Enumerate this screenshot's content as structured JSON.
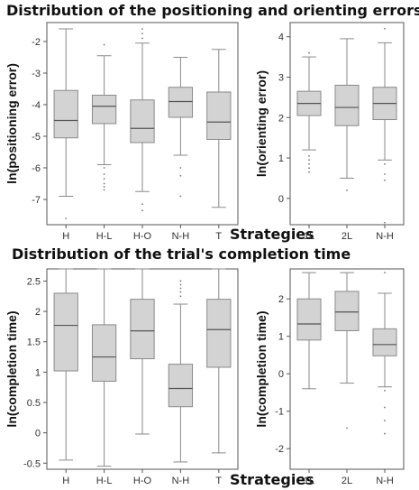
{
  "titles": {
    "top": "Distribution of the positioning and orienting errors",
    "bottom": "Distribution of the trial's completion time"
  },
  "strategies_label": "Strategies",
  "colors": {
    "box_fill": "#d3d3d3",
    "box_stroke": "#8a8a8a",
    "axis": "#555555",
    "text": "#333333"
  },
  "chart_data": [
    {
      "type": "boxplot",
      "title": "",
      "ylabel": "ln(positioning error)",
      "xlabel": "",
      "ylim": [
        -7.8,
        -1.4
      ],
      "yticks": [
        -7,
        -6,
        -5,
        -4,
        -3,
        -2
      ],
      "categories": [
        "H",
        "H-L",
        "H-O",
        "N-H",
        "T"
      ],
      "boxes": [
        {
          "min": -6.9,
          "q1": -5.05,
          "median": -4.5,
          "q3": -3.55,
          "max": -1.6,
          "outliers": [
            -7.6
          ]
        },
        {
          "min": -5.9,
          "q1": -4.6,
          "median": -4.05,
          "q3": -3.7,
          "max": -2.45,
          "outliers": [
            -2.1,
            -6.0,
            -6.2,
            -6.35,
            -6.5,
            -6.6,
            -6.7
          ]
        },
        {
          "min": -6.75,
          "q1": -5.2,
          "median": -4.75,
          "q3": -3.85,
          "max": -2.05,
          "outliers": [
            -1.6,
            -1.75,
            -1.9,
            -7.15,
            -7.35
          ]
        },
        {
          "min": -5.6,
          "q1": -4.4,
          "median": -3.9,
          "q3": -3.45,
          "max": -2.5,
          "outliers": [
            -6.0,
            -6.25,
            -6.9
          ]
        },
        {
          "min": -7.25,
          "q1": -5.1,
          "median": -4.55,
          "q3": -3.6,
          "max": -2.25,
          "outliers": []
        }
      ]
    },
    {
      "type": "boxplot",
      "title": "",
      "ylabel": "ln(orienting error)",
      "xlabel": "",
      "ylim": [
        -0.65,
        4.35
      ],
      "yticks": [
        0,
        1,
        2,
        3,
        4
      ],
      "categories": [
        "1L",
        "2L",
        "N-H"
      ],
      "boxes": [
        {
          "min": 1.2,
          "q1": 2.05,
          "median": 2.35,
          "q3": 2.65,
          "max": 3.5,
          "outliers": [
            3.6,
            1.05,
            0.95,
            0.85,
            0.75,
            0.65
          ]
        },
        {
          "min": 0.5,
          "q1": 1.8,
          "median": 2.25,
          "q3": 2.8,
          "max": 3.95,
          "outliers": [
            0.2
          ]
        },
        {
          "min": 0.95,
          "q1": 1.95,
          "median": 2.35,
          "q3": 2.75,
          "max": 3.85,
          "outliers": [
            4.2,
            0.85,
            0.6,
            0.45,
            -0.6
          ]
        }
      ]
    },
    {
      "type": "boxplot",
      "title": "",
      "ylabel": "ln(completion time)",
      "xlabel": "",
      "ylim": [
        -0.6,
        2.7
      ],
      "yticks": [
        -0.5,
        0,
        0.5,
        1,
        1.5,
        2,
        2.5
      ],
      "categories": [
        "H",
        "H-L",
        "H-O",
        "N-H",
        "T"
      ],
      "boxes": [
        {
          "min": -0.45,
          "q1": 1.02,
          "median": 1.77,
          "q3": 2.3,
          "max": 2.7,
          "outliers": []
        },
        {
          "min": -0.55,
          "q1": 0.85,
          "median": 1.25,
          "q3": 1.78,
          "max": 2.7,
          "outliers": []
        },
        {
          "min": -0.02,
          "q1": 1.22,
          "median": 1.68,
          "q3": 2.2,
          "max": 2.7,
          "outliers": []
        },
        {
          "min": -0.48,
          "q1": 0.43,
          "median": 0.73,
          "q3": 1.13,
          "max": 2.12,
          "outliers": [
            2.25,
            2.32,
            2.38,
            2.44,
            2.5
          ]
        },
        {
          "min": -0.33,
          "q1": 1.08,
          "median": 1.7,
          "q3": 2.2,
          "max": 2.7,
          "outliers": []
        }
      ]
    },
    {
      "type": "boxplot",
      "title": "",
      "ylabel": "ln(completion time)",
      "xlabel": "",
      "ylim": [
        -2.55,
        2.8
      ],
      "yticks": [
        -2,
        -1,
        0,
        1,
        2
      ],
      "categories": [
        "1L",
        "2L",
        "N-H"
      ],
      "boxes": [
        {
          "min": -0.4,
          "q1": 0.9,
          "median": 1.33,
          "q3": 2.0,
          "max": 2.7,
          "outliers": []
        },
        {
          "min": -0.25,
          "q1": 1.15,
          "median": 1.65,
          "q3": 2.2,
          "max": 2.7,
          "outliers": [
            -1.45
          ]
        },
        {
          "min": -0.35,
          "q1": 0.48,
          "median": 0.78,
          "q3": 1.2,
          "max": 2.15,
          "outliers": [
            2.7,
            -0.45,
            -0.9,
            -1.25,
            -1.6
          ]
        }
      ]
    }
  ]
}
